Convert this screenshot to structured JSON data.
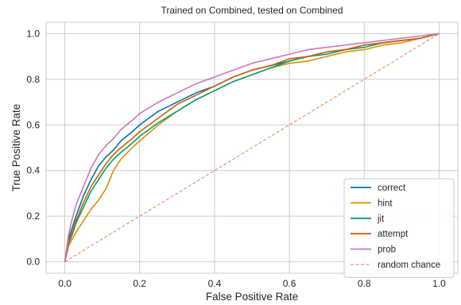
{
  "chart_data": {
    "type": "line",
    "title": "Trained on Combined, tested on Combined",
    "xlabel": "False Positive Rate",
    "ylabel": "True Positive Rate",
    "xlim": [
      -0.05,
      1.05
    ],
    "ylim": [
      -0.05,
      1.05
    ],
    "xticks": [
      "0.0",
      "0.2",
      "0.4",
      "0.6",
      "0.8",
      "1.0"
    ],
    "yticks": [
      "0.0",
      "0.2",
      "0.4",
      "0.6",
      "0.8",
      "1.0"
    ],
    "grid": true,
    "legend_position": "lower-right",
    "series": [
      {
        "name": "correct",
        "color": "#0173b2",
        "x": [
          0,
          0.01,
          0.02,
          0.03,
          0.05,
          0.07,
          0.09,
          0.11,
          0.13,
          0.15,
          0.18,
          0.2,
          0.25,
          0.3,
          0.35,
          0.4,
          0.45,
          0.5,
          0.55,
          0.6,
          0.65,
          0.7,
          0.75,
          0.8,
          0.85,
          0.9,
          0.95,
          1.0
        ],
        "y": [
          0,
          0.1,
          0.15,
          0.2,
          0.29,
          0.36,
          0.42,
          0.46,
          0.49,
          0.53,
          0.57,
          0.6,
          0.66,
          0.7,
          0.74,
          0.77,
          0.81,
          0.84,
          0.86,
          0.88,
          0.9,
          0.92,
          0.93,
          0.95,
          0.96,
          0.97,
          0.98,
          1.0
        ]
      },
      {
        "name": "hint",
        "color": "#de8f05",
        "x": [
          0,
          0.01,
          0.02,
          0.03,
          0.05,
          0.07,
          0.09,
          0.11,
          0.13,
          0.15,
          0.18,
          0.2,
          0.25,
          0.3,
          0.35,
          0.4,
          0.45,
          0.5,
          0.55,
          0.6,
          0.65,
          0.7,
          0.75,
          0.8,
          0.85,
          0.9,
          0.95,
          1.0
        ],
        "y": [
          0,
          0.07,
          0.1,
          0.13,
          0.18,
          0.23,
          0.27,
          0.32,
          0.4,
          0.45,
          0.5,
          0.53,
          0.6,
          0.66,
          0.71,
          0.75,
          0.79,
          0.82,
          0.85,
          0.87,
          0.88,
          0.9,
          0.92,
          0.93,
          0.95,
          0.96,
          0.98,
          1.0
        ]
      },
      {
        "name": "jit",
        "color": "#029e73",
        "x": [
          0,
          0.01,
          0.02,
          0.03,
          0.05,
          0.07,
          0.09,
          0.11,
          0.13,
          0.15,
          0.18,
          0.2,
          0.25,
          0.3,
          0.35,
          0.4,
          0.45,
          0.5,
          0.55,
          0.6,
          0.65,
          0.7,
          0.75,
          0.8,
          0.85,
          0.9,
          0.95,
          1.0
        ],
        "y": [
          0,
          0.08,
          0.12,
          0.17,
          0.24,
          0.31,
          0.36,
          0.41,
          0.45,
          0.48,
          0.52,
          0.55,
          0.61,
          0.66,
          0.71,
          0.75,
          0.79,
          0.82,
          0.85,
          0.88,
          0.9,
          0.91,
          0.93,
          0.94,
          0.96,
          0.97,
          0.98,
          1.0
        ]
      },
      {
        "name": "attempt",
        "color": "#d55e00",
        "x": [
          0,
          0.01,
          0.02,
          0.03,
          0.05,
          0.07,
          0.09,
          0.11,
          0.13,
          0.15,
          0.18,
          0.2,
          0.25,
          0.3,
          0.35,
          0.4,
          0.45,
          0.5,
          0.55,
          0.6,
          0.65,
          0.7,
          0.75,
          0.8,
          0.85,
          0.9,
          0.95,
          1.0
        ],
        "y": [
          0,
          0.09,
          0.13,
          0.18,
          0.26,
          0.33,
          0.38,
          0.43,
          0.47,
          0.5,
          0.54,
          0.57,
          0.63,
          0.69,
          0.73,
          0.77,
          0.81,
          0.84,
          0.86,
          0.89,
          0.9,
          0.92,
          0.93,
          0.95,
          0.96,
          0.97,
          0.98,
          1.0
        ]
      },
      {
        "name": "prob",
        "color": "#cc78bc",
        "x": [
          0,
          0.01,
          0.02,
          0.03,
          0.05,
          0.07,
          0.09,
          0.11,
          0.13,
          0.15,
          0.18,
          0.2,
          0.25,
          0.3,
          0.35,
          0.4,
          0.45,
          0.5,
          0.55,
          0.6,
          0.65,
          0.7,
          0.75,
          0.8,
          0.85,
          0.9,
          0.95,
          1.0
        ],
        "y": [
          0,
          0.12,
          0.19,
          0.25,
          0.33,
          0.41,
          0.47,
          0.51,
          0.54,
          0.58,
          0.62,
          0.65,
          0.7,
          0.74,
          0.78,
          0.81,
          0.84,
          0.87,
          0.89,
          0.91,
          0.93,
          0.94,
          0.95,
          0.96,
          0.97,
          0.98,
          0.99,
          1.0
        ]
      },
      {
        "name": "random chance",
        "color": "#dd8452",
        "dashed": true,
        "x": [
          0,
          1
        ],
        "y": [
          0,
          1
        ]
      }
    ]
  }
}
